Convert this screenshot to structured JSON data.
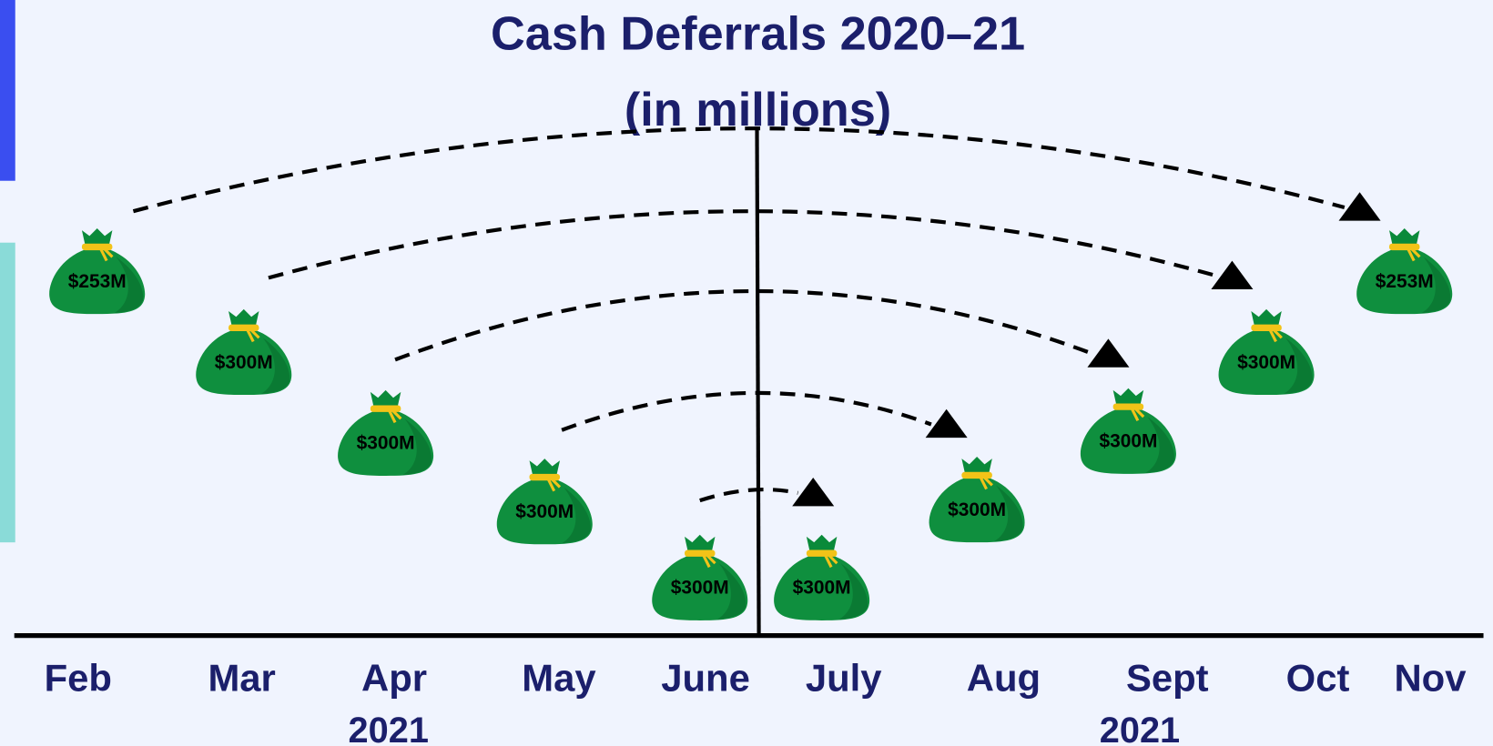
{
  "title": "Cash Deferrals 2020–21",
  "subtitle": "(in millions)",
  "months": [
    "Feb",
    "Mar",
    "Apr",
    "May",
    "June",
    "July",
    "Aug",
    "Sept",
    "Oct",
    "Nov"
  ],
  "years": [
    "2021",
    "2021"
  ],
  "bags": [
    {
      "label": "$253M"
    },
    {
      "label": "$300M"
    },
    {
      "label": "$300M"
    },
    {
      "label": "$300M"
    },
    {
      "label": "$300M"
    },
    {
      "label": "$300M"
    },
    {
      "label": "$300M"
    },
    {
      "label": "$300M"
    },
    {
      "label": "$300M"
    },
    {
      "label": "$253M"
    }
  ]
}
